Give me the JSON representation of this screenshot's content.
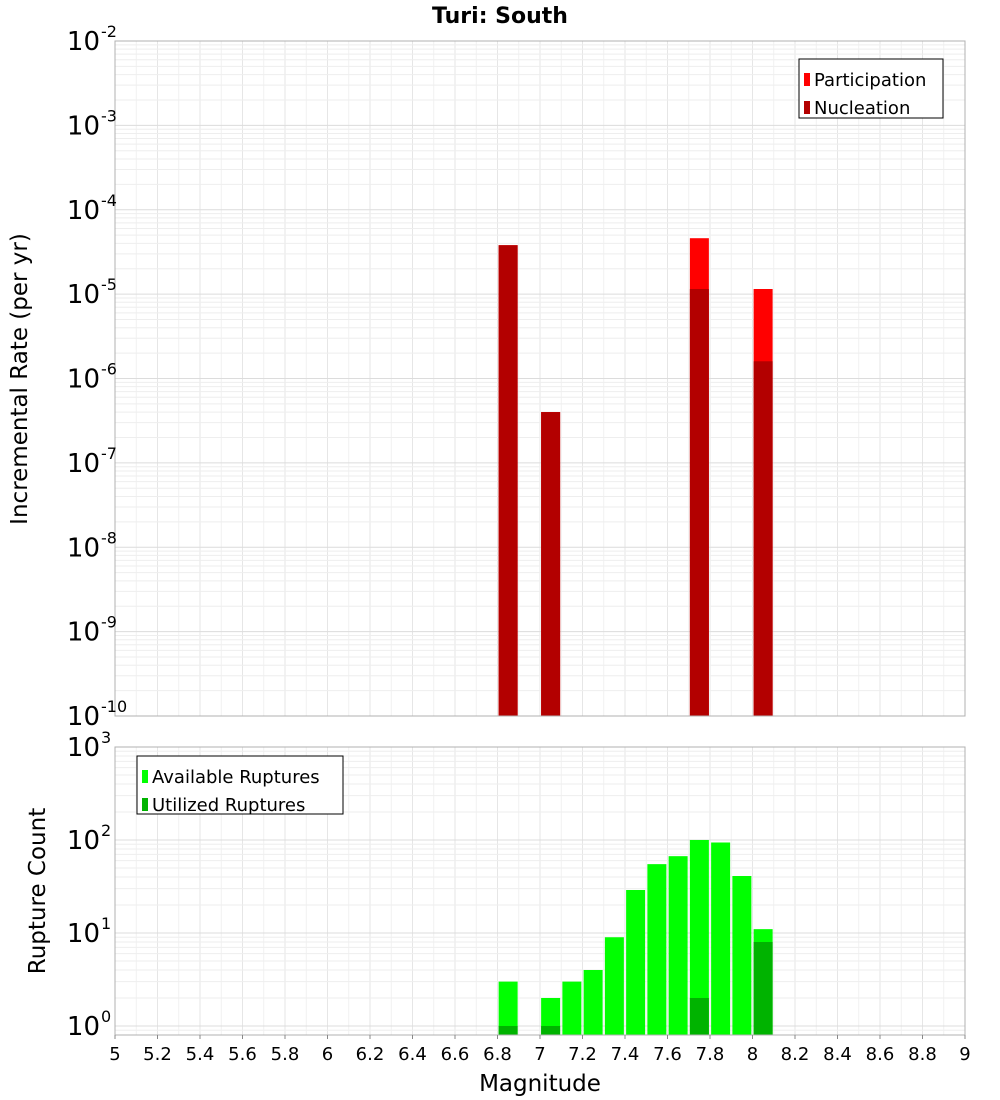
{
  "title": "Turi: South",
  "colors": {
    "participation": "#ff0000",
    "nucleation": "#b30000",
    "available": "#00ff00",
    "utilized": "#00b300"
  },
  "chart_data": [
    {
      "type": "bar",
      "title": "Turi: South",
      "xlabel": "",
      "ylabel": "Incremental Rate (per yr)",
      "yscale": "log",
      "ylim": [
        1e-10,
        0.01
      ],
      "xlim": [
        5,
        9
      ],
      "y_ticks": [
        {
          "base": "10",
          "exp": "-2",
          "value": 0.01
        },
        {
          "base": "10",
          "exp": "-3",
          "value": 0.001
        },
        {
          "base": "10",
          "exp": "-4",
          "value": 0.0001
        },
        {
          "base": "10",
          "exp": "-5",
          "value": 1e-05
        },
        {
          "base": "10",
          "exp": "-6",
          "value": 1e-06
        },
        {
          "base": "10",
          "exp": "-7",
          "value": 1e-07
        },
        {
          "base": "10",
          "exp": "-8",
          "value": 1e-08
        },
        {
          "base": "10",
          "exp": "-9",
          "value": 1e-09
        },
        {
          "base": "10",
          "exp": "-10",
          "value": 1e-10
        }
      ],
      "legend": {
        "position": "top-right",
        "entries": [
          "Participation",
          "Nucleation"
        ]
      },
      "grid": true,
      "series": [
        {
          "name": "Participation",
          "x": [
            6.85,
            7.05,
            7.75,
            8.05
          ],
          "values": [
            3.8e-05,
            4e-07,
            4.6e-05,
            1.15e-05
          ]
        },
        {
          "name": "Nucleation",
          "x": [
            6.85,
            7.05,
            7.75,
            8.05
          ],
          "values": [
            3.8e-05,
            4e-07,
            1.15e-05,
            1.6e-06
          ]
        }
      ]
    },
    {
      "type": "bar",
      "xlabel": "Magnitude",
      "ylabel": "Rupture Count",
      "yscale": "log",
      "ylim": [
        0.8,
        1000
      ],
      "xlim": [
        5,
        9
      ],
      "y_ticks": [
        {
          "base": "10",
          "exp": "3",
          "value": 1000
        },
        {
          "base": "10",
          "exp": "2",
          "value": 100
        },
        {
          "base": "10",
          "exp": "1",
          "value": 10
        },
        {
          "base": "10",
          "exp": "0",
          "value": 1
        }
      ],
      "x_ticks": [
        "5",
        "5.2",
        "5.4",
        "5.6",
        "5.8",
        "6",
        "6.2",
        "6.4",
        "6.6",
        "6.8",
        "7",
        "7.2",
        "7.4",
        "7.6",
        "7.8",
        "8",
        "8.2",
        "8.4",
        "8.6",
        "8.8",
        "9"
      ],
      "legend": {
        "position": "top-left",
        "entries": [
          "Available Ruptures",
          "Utilized Ruptures"
        ]
      },
      "grid": true,
      "series": [
        {
          "name": "Available Ruptures",
          "x": [
            6.85,
            7.05,
            7.15,
            7.25,
            7.35,
            7.45,
            7.55,
            7.65,
            7.75,
            7.85,
            7.95,
            8.05
          ],
          "values": [
            3,
            2,
            3,
            4,
            9,
            29,
            55,
            67,
            100,
            94,
            41,
            11
          ]
        },
        {
          "name": "Utilized Ruptures",
          "x": [
            6.85,
            7.05,
            7.75,
            8.05
          ],
          "values": [
            1,
            1,
            2,
            8
          ]
        }
      ]
    }
  ]
}
